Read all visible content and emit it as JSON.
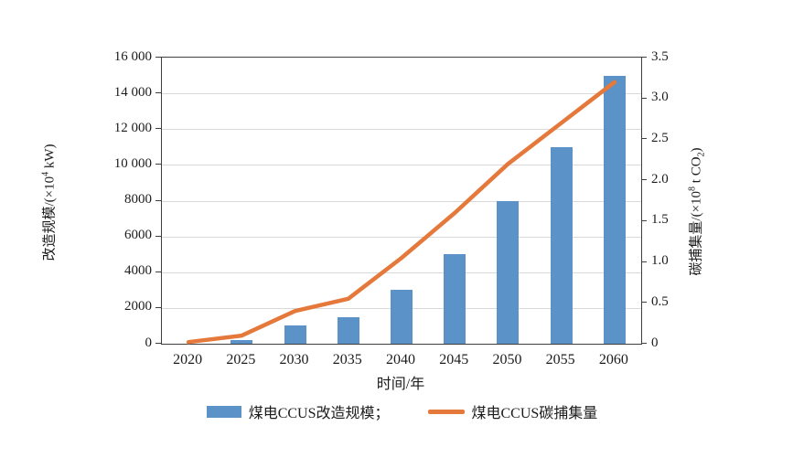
{
  "figure": {
    "background": "#ffffff",
    "bar_color": "#5b92c8",
    "line_color": "#e5793b",
    "grid_color": "#d9d9d9",
    "axis_color": "#3f3f3f"
  },
  "chart_data": {
    "type": "bar",
    "subtype": "dual-axis bar + line",
    "categories": [
      "2020",
      "2025",
      "2030",
      "2035",
      "2040",
      "2045",
      "2050",
      "2055",
      "2060"
    ],
    "series": [
      {
        "name": "煤电CCUS改造规模",
        "type": "bar",
        "axis": "left",
        "color": "#5b92c8",
        "values": [
          0,
          200,
          1000,
          1500,
          3000,
          5000,
          8000,
          11000,
          15000
        ]
      },
      {
        "name": "煤电CCUS碳捕集量",
        "type": "line",
        "axis": "right",
        "color": "#e5793b",
        "values": [
          0.02,
          0.1,
          0.4,
          0.55,
          1.05,
          1.6,
          2.2,
          2.7,
          3.2
        ]
      }
    ],
    "left_axis": {
      "title": "改造规模/(×10⁴ kW)",
      "title_parts": [
        {
          "t": "改造规模/(×10"
        },
        {
          "t": "4",
          "sup": true
        },
        {
          "t": " kW)"
        }
      ],
      "min": 0,
      "max": 16000,
      "ticks": [
        {
          "v": 0,
          "label": "0"
        },
        {
          "v": 2000,
          "label": "2000"
        },
        {
          "v": 4000,
          "label": "4000"
        },
        {
          "v": 6000,
          "label": "6000"
        },
        {
          "v": 8000,
          "label": "8000"
        },
        {
          "v": 10000,
          "label": "10 000"
        },
        {
          "v": 12000,
          "label": "12 000"
        },
        {
          "v": 14000,
          "label": "14 000"
        },
        {
          "v": 16000,
          "label": "16 000"
        }
      ]
    },
    "right_axis": {
      "title": "碳捕集量/(×10⁸ t CO₂)",
      "title_parts": [
        {
          "t": "碳捕集量/(×10"
        },
        {
          "t": "8",
          "sup": true
        },
        {
          "t": " t CO"
        },
        {
          "t": "2",
          "sub": true
        },
        {
          "t": ")"
        }
      ],
      "min": 0,
      "max": 3.5,
      "ticks": [
        {
          "v": 0,
          "label": "0"
        },
        {
          "v": 0.5,
          "label": "0.5"
        },
        {
          "v": 1.0,
          "label": "1.0"
        },
        {
          "v": 1.5,
          "label": "1.5"
        },
        {
          "v": 2.0,
          "label": "2.0"
        },
        {
          "v": 2.5,
          "label": "2.5"
        },
        {
          "v": 3.0,
          "label": "3.0"
        },
        {
          "v": 3.5,
          "label": "3.5"
        }
      ]
    },
    "x_axis": {
      "title": "时间/年"
    },
    "legend": [
      {
        "label": "煤电CCUS改造规模；",
        "marker": "bar"
      },
      {
        "label": "煤电CCUS碳捕集量",
        "marker": "line"
      }
    ],
    "grid": true,
    "legend_position": "bottom-center"
  }
}
